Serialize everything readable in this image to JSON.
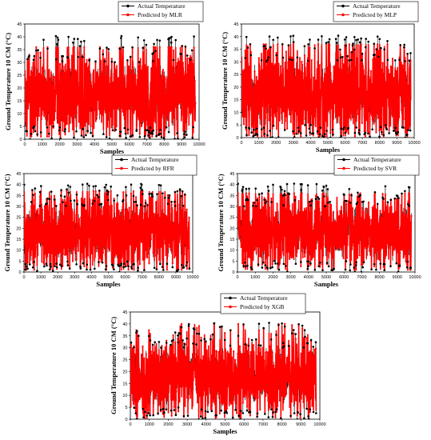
{
  "colors": {
    "actual": "#000000",
    "predicted": "#ff0000",
    "frame": "#000000"
  },
  "chart_data": [
    {
      "type": "line",
      "xlabel": "Samples",
      "ylabel": "Ground Temperature 10 CM (°C)",
      "xlim": [
        0,
        10000
      ],
      "ylim": [
        0,
        45
      ],
      "xticks": [
        "0",
        "1000",
        "2000",
        "3000",
        "4000",
        "5000",
        "6000",
        "7000",
        "8000",
        "9000",
        "10000"
      ],
      "yticks": [
        "0",
        "5",
        "10",
        "15",
        "20",
        "25",
        "30",
        "35",
        "40",
        "45"
      ],
      "n_samples": 9800,
      "legend": "top-right",
      "series": [
        {
          "name": "Actual Temperature",
          "marker": "circle",
          "range": [
            0,
            40.5
          ]
        },
        {
          "name": "Predicted by MLR",
          "marker": "star",
          "range": [
            1,
            36
          ]
        }
      ]
    },
    {
      "type": "line",
      "xlabel": "Samples",
      "ylabel": "Ground Temperature 10 CM (°C)",
      "xlim": [
        0,
        10000
      ],
      "ylim": [
        0,
        45
      ],
      "xticks": [
        "0",
        "1000",
        "2000",
        "3000",
        "4000",
        "5000",
        "6000",
        "7000",
        "8000",
        "9000",
        "10000"
      ],
      "yticks": [
        "0",
        "5",
        "10",
        "15",
        "20",
        "25",
        "30",
        "35",
        "40",
        "45"
      ],
      "n_samples": 9800,
      "legend": "top-right",
      "series": [
        {
          "name": "Actual Temperature",
          "marker": "circle",
          "range": [
            0,
            40.5
          ]
        },
        {
          "name": "Predicted by MLP",
          "marker": "star",
          "range": [
            0.5,
            37
          ]
        }
      ]
    },
    {
      "type": "line",
      "xlabel": "Samples",
      "ylabel": "Ground Temperature 10 CM (°C)",
      "xlim": [
        0,
        10000
      ],
      "ylim": [
        0,
        45
      ],
      "xticks": [
        "0",
        "1000",
        "2000",
        "3000",
        "4000",
        "5000",
        "6000",
        "7000",
        "8000",
        "9000",
        "10000"
      ],
      "yticks": [
        "0",
        "5",
        "10",
        "15",
        "20",
        "25",
        "30",
        "35",
        "40",
        "45"
      ],
      "n_samples": 9800,
      "legend": "top-right",
      "series": [
        {
          "name": "Actual Temperature",
          "marker": "circle",
          "range": [
            0,
            40.5
          ]
        },
        {
          "name": "Predicted by RFR",
          "marker": "star",
          "range": [
            1,
            37
          ]
        }
      ]
    },
    {
      "type": "line",
      "xlabel": "Samples",
      "ylabel": "Ground Temperature 10 CM (°C)",
      "xlim": [
        0,
        10000
      ],
      "ylim": [
        0,
        45
      ],
      "xticks": [
        "0",
        "1000",
        "2000",
        "3000",
        "4000",
        "5000",
        "6000",
        "7000",
        "8000",
        "9000",
        "10000"
      ],
      "yticks": [
        "0",
        "5",
        "10",
        "15",
        "20",
        "25",
        "30",
        "35",
        "40",
        "45"
      ],
      "n_samples": 9800,
      "legend": "top-right",
      "series": [
        {
          "name": "Actual Temperature",
          "marker": "circle",
          "range": [
            0,
            40.5
          ]
        },
        {
          "name": "Predicted by SVR",
          "marker": "star",
          "range": [
            1,
            36
          ]
        }
      ]
    },
    {
      "type": "line",
      "xlabel": "Samples",
      "ylabel": "Ground Temperature 10 CM (°C)",
      "xlim": [
        0,
        10000
      ],
      "ylim": [
        0,
        45
      ],
      "xticks": [
        "0",
        "1000",
        "2000",
        "3000",
        "4000",
        "5000",
        "6000",
        "7000",
        "8000",
        "9000",
        "10000"
      ],
      "yticks": [
        "0",
        "5",
        "10",
        "15",
        "20",
        "25",
        "30",
        "35",
        "40",
        "45"
      ],
      "n_samples": 9800,
      "legend": "top-right",
      "series": [
        {
          "name": "Actual Temperature",
          "marker": "circle",
          "range": [
            0,
            40.5
          ]
        },
        {
          "name": "Predicted by XGB",
          "marker": "star",
          "range": [
            0.5,
            40
          ]
        }
      ]
    }
  ]
}
